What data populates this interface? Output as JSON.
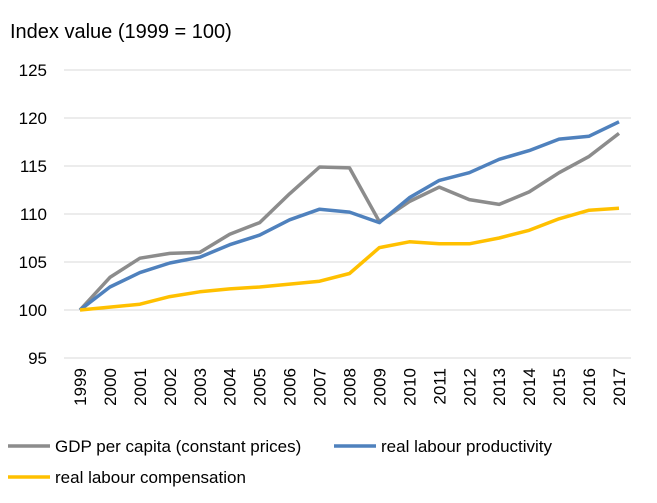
{
  "chart_data": {
    "type": "line",
    "title": "",
    "ylabel": "Index value (1999 = 100)",
    "xlabel": "",
    "ylim": [
      95,
      125
    ],
    "yticks": [
      95,
      100,
      105,
      110,
      115,
      120,
      125
    ],
    "grid": true,
    "legend_position": "bottom",
    "categories": [
      "1999",
      "2000",
      "2001",
      "2002",
      "2003",
      "2004",
      "2005",
      "2006",
      "2007",
      "2008",
      "2009",
      "2010",
      "2011",
      "2012",
      "2013",
      "2014",
      "2015",
      "2016",
      "2017"
    ],
    "series": [
      {
        "name": "GDP per capita (constant prices)",
        "color": "#8c8c8c",
        "values": [
          100.0,
          103.4,
          105.4,
          105.9,
          106.0,
          107.9,
          109.1,
          112.1,
          114.9,
          114.8,
          109.2,
          111.3,
          112.8,
          111.5,
          111.0,
          112.3,
          114.3,
          116.0,
          118.4
        ]
      },
      {
        "name": "real labour productivity",
        "color": "#4f81bd",
        "values": [
          100.0,
          102.4,
          103.9,
          104.9,
          105.5,
          106.8,
          107.8,
          109.4,
          110.5,
          110.2,
          109.1,
          111.7,
          113.5,
          114.3,
          115.7,
          116.6,
          117.8,
          118.1,
          119.6
        ]
      },
      {
        "name": "real labour compensation",
        "color": "#ffc000",
        "values": [
          100.0,
          100.3,
          100.6,
          101.4,
          101.9,
          102.2,
          102.4,
          102.7,
          103.0,
          103.8,
          106.5,
          107.1,
          106.9,
          106.9,
          107.5,
          108.3,
          109.5,
          110.4,
          110.6
        ]
      }
    ]
  }
}
